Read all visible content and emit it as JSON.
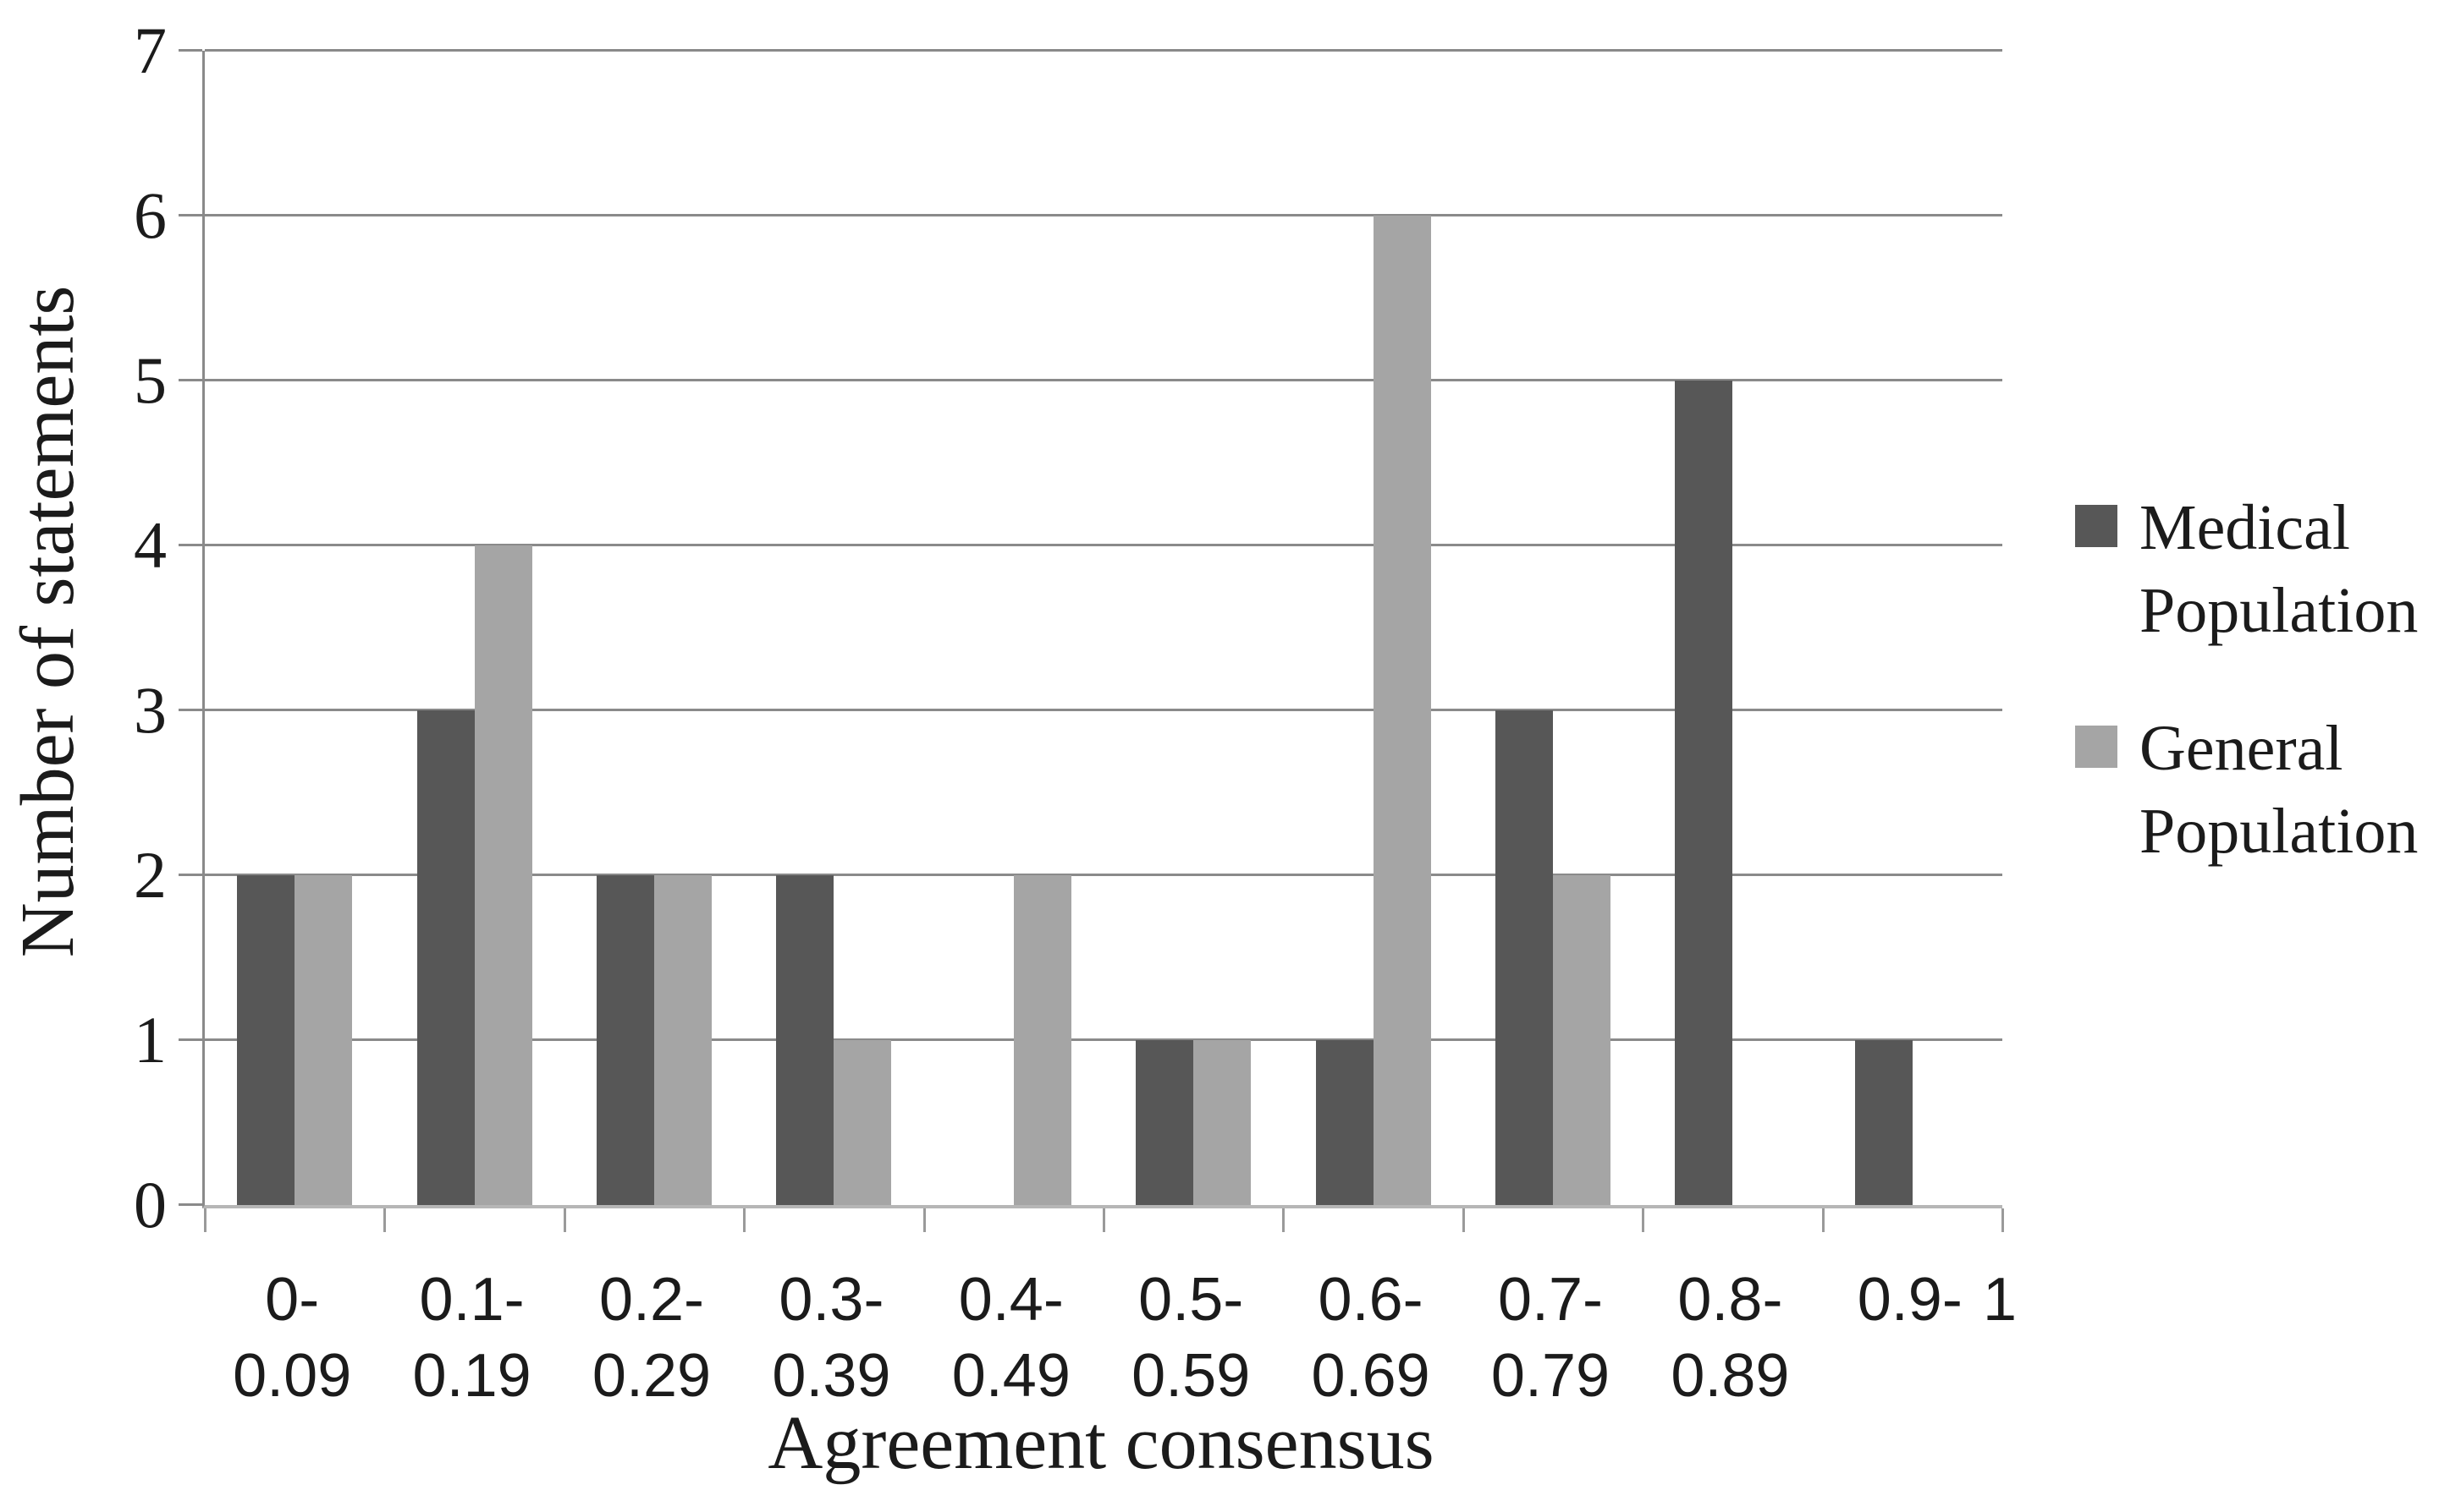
{
  "chart_data": {
    "type": "bar",
    "xlabel": "Agreement consensus",
    "ylabel": "Number of statements",
    "categories": [
      "0-0.09",
      "0.1-0.19",
      "0.2-0.29",
      "0.3-0.39",
      "0.4-0.49",
      "0.5-0.59",
      "0.6-0.69",
      "0.7-0.79",
      "0.8-0.89",
      "0.9-"
    ],
    "x_tick_label_lines": [
      [
        "0-",
        "0.09"
      ],
      [
        "0.1-",
        "0.19"
      ],
      [
        "0.2-",
        "0.29"
      ],
      [
        "0.3-",
        "0.39"
      ],
      [
        "0.4-",
        "0.49"
      ],
      [
        "0.5-",
        "0.59"
      ],
      [
        "0.6-",
        "0.69"
      ],
      [
        "0.7-",
        "0.79"
      ],
      [
        "0.8-",
        "0.89"
      ],
      [
        "0.9-"
      ]
    ],
    "x_axis_end_label": "1",
    "series": [
      {
        "name": "Medical Population",
        "color": "#575757",
        "values": [
          2,
          3,
          2,
          2,
          0,
          1,
          1,
          3,
          5,
          1
        ]
      },
      {
        "name": "General Population",
        "color": "#a5a5a5",
        "values": [
          2,
          4,
          2,
          1,
          2,
          1,
          6,
          2,
          0,
          0
        ]
      }
    ],
    "ylim": [
      0,
      7
    ],
    "yticks": [
      0,
      1,
      2,
      3,
      4,
      5,
      6,
      7
    ],
    "grid": "horizontal",
    "legend_position": "right",
    "colors": {
      "gridline": "#8a8a8a",
      "y_axis": "#8a8a8a",
      "x_axis": "#b6b6b6",
      "tick": "#9a9a9a",
      "text": "#1b1b1b",
      "background": "#ffffff"
    }
  }
}
